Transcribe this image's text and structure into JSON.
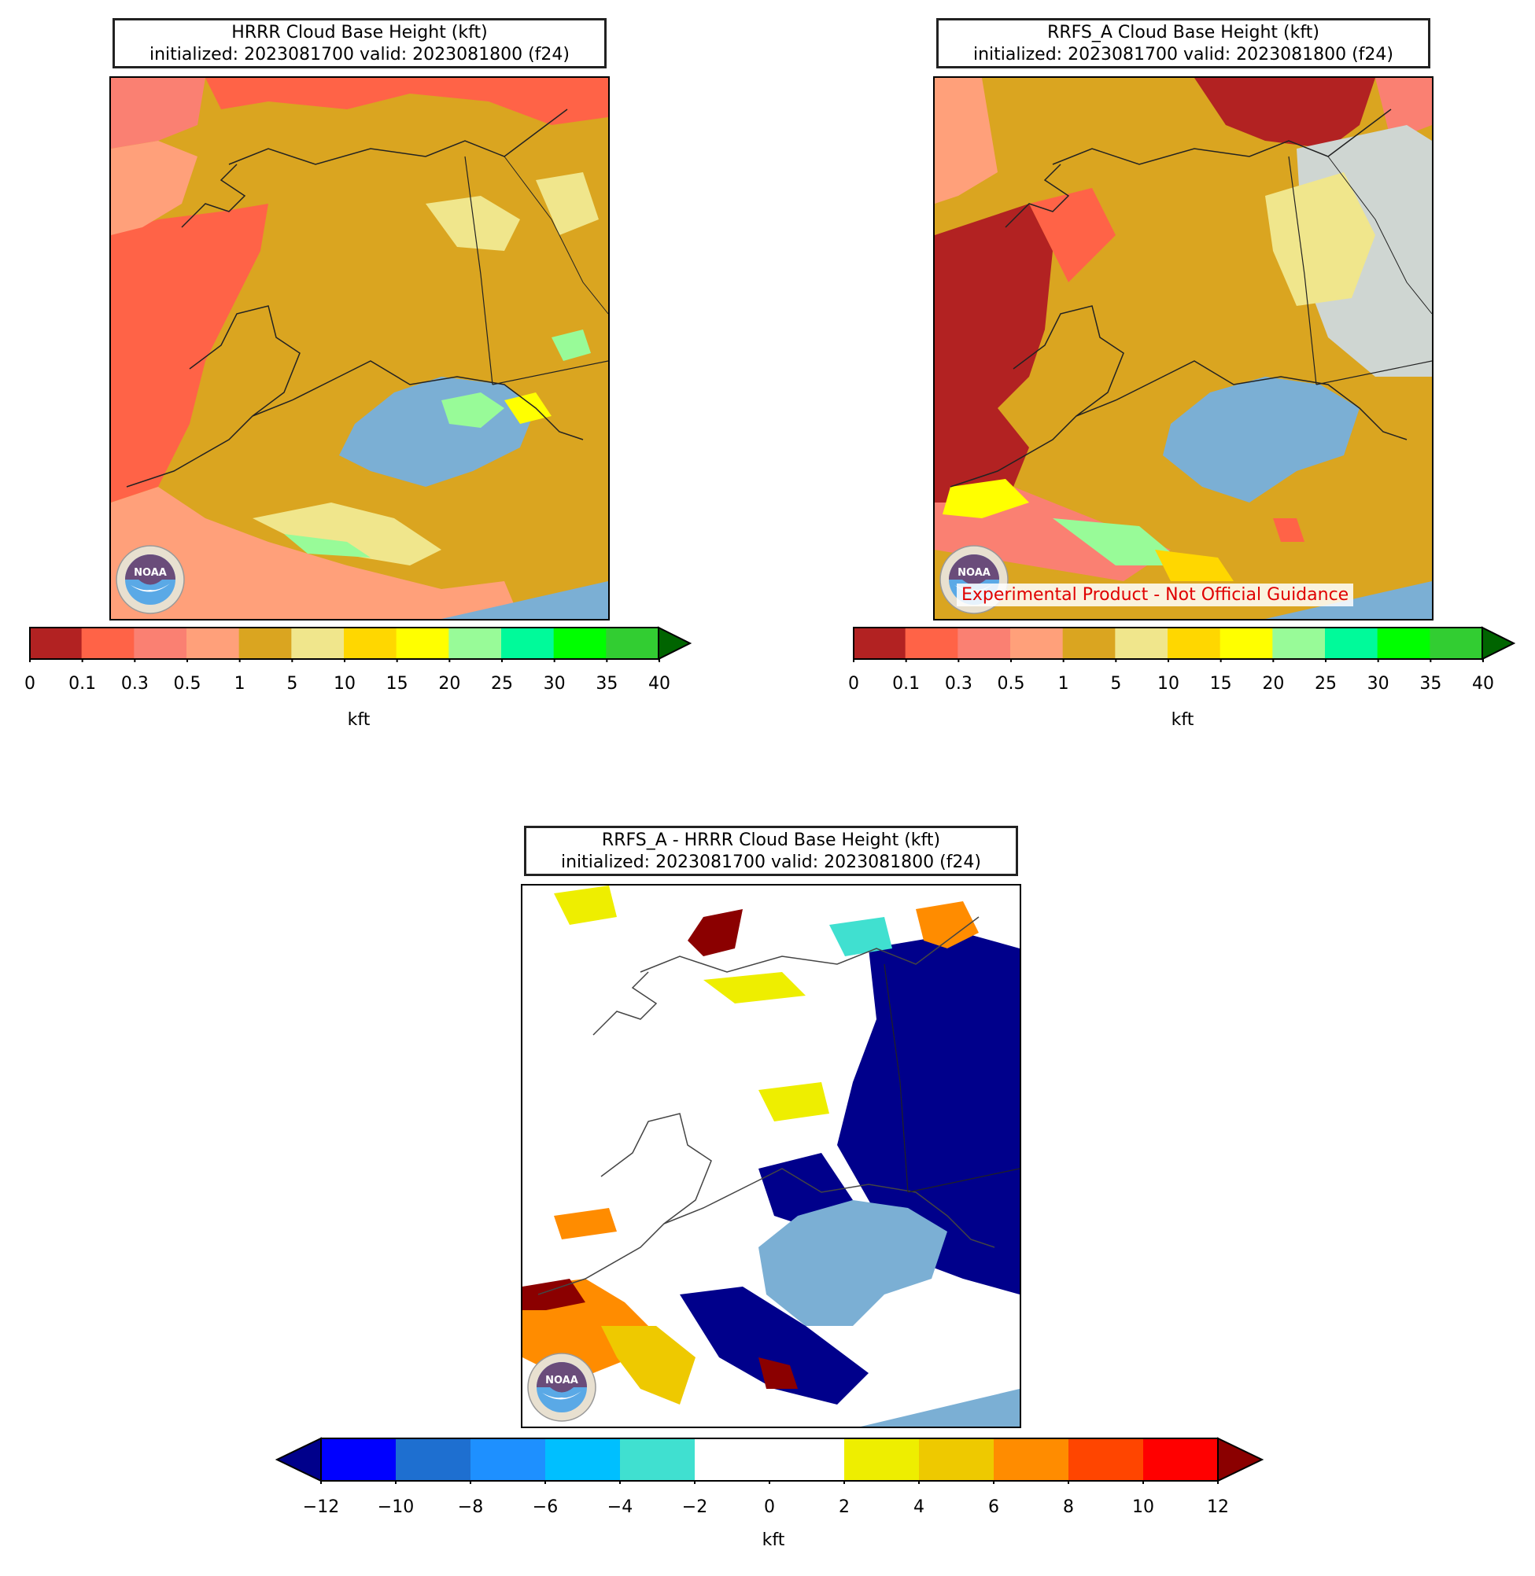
{
  "panels": {
    "hrrr": {
      "title_line1": "HRRR Cloud Base Height (kft)",
      "title_line2": "initialized: 2023081700 valid: 2023081800 (f24)"
    },
    "rrfs": {
      "title_line1": "RRFS_A Cloud Base Height (kft)",
      "title_line2": "initialized: 2023081700 valid: 2023081800 (f24)",
      "watermark": "Experimental Product - Not Official Guidance"
    },
    "diff": {
      "title_line1": "RRFS_A - HRRR Cloud Base Height (kft)",
      "title_line2": "initialized: 2023081700 valid: 2023081800 (f24)"
    }
  },
  "colorbar_height": {
    "unit_label": "kft",
    "ticks": [
      "0",
      "0.1",
      "0.3",
      "0.5",
      "1",
      "5",
      "10",
      "15",
      "20",
      "25",
      "30",
      "35",
      "40"
    ],
    "colors": [
      "#b22222",
      "#ff6347",
      "#fa8072",
      "#ffa07a",
      "#daa520",
      "#f0e68c",
      "#ffd700",
      "#ffff00",
      "#98fb98",
      "#00fa9a",
      "#00ff00",
      "#32cd32"
    ],
    "extend_color": "#006400"
  },
  "colorbar_diff": {
    "unit_label": "kft",
    "ticks": [
      "−12",
      "−10",
      "−8",
      "−6",
      "−4",
      "−2",
      "0",
      "2",
      "4",
      "6",
      "8",
      "10",
      "12"
    ],
    "colors": [
      "#0000ff",
      "#1e6fd0",
      "#1e90ff",
      "#00bfff",
      "#40e0d0",
      "#ffffff",
      "#ffffff",
      "#eeee00",
      "#eec900",
      "#ff8c00",
      "#ff4500",
      "#ff0000"
    ],
    "extend_low_color": "#00008b",
    "extend_high_color": "#8b0000"
  },
  "logo": {
    "text": "NOAA"
  },
  "colors": {
    "ocean": "#7bafd4",
    "land_base": "#daa520"
  }
}
